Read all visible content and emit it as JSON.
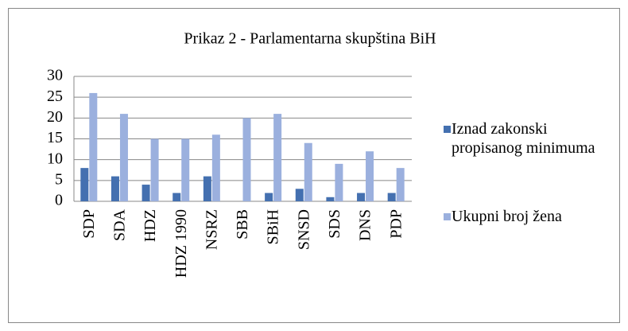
{
  "chart_data": {
    "type": "bar",
    "title": "Prikaz 2 - Parlamentarna skupština BiH",
    "categories": [
      "SDP",
      "SDA",
      "HDZ",
      "HDZ 1990",
      "NSRZ",
      "SBB",
      "SBiH",
      "SNSD",
      "SDS",
      "DNS",
      "PDP"
    ],
    "series": [
      {
        "name": "Iznad zakonski propisanog minimuma",
        "color": "#4470b0",
        "values": [
          8,
          6,
          4,
          2,
          6,
          0,
          2,
          3,
          1,
          2,
          2
        ]
      },
      {
        "name": "Ukupni broj žena",
        "color": "#9bb0de",
        "values": [
          26,
          21,
          15,
          15,
          16,
          20,
          21,
          14,
          9,
          12,
          8
        ]
      }
    ],
    "ylim": [
      0,
      30
    ],
    "yticks": [
      0,
      5,
      10,
      15,
      20,
      25,
      30
    ],
    "grid": true,
    "legend": "right"
  }
}
